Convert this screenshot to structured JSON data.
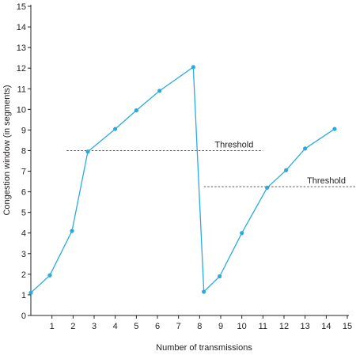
{
  "chart_data": {
    "type": "line",
    "xlabel": "Number of transmissions",
    "ylabel": "Congestion window (in segments)",
    "xlim": [
      0,
      15
    ],
    "ylim": [
      0,
      15
    ],
    "x_ticks": [
      1,
      2,
      3,
      4,
      5,
      6,
      7,
      8,
      9,
      10,
      11,
      12,
      13,
      14,
      15
    ],
    "y_ticks": [
      0,
      1,
      2,
      3,
      4,
      5,
      6,
      7,
      8,
      9,
      10,
      11,
      12,
      13,
      14,
      15
    ],
    "grid": false,
    "legend": "none",
    "series": [
      {
        "color": "#29abe2",
        "points": [
          {
            "x": 0.0,
            "y": 1.1
          },
          {
            "x": 0.9,
            "y": 1.95
          },
          {
            "x": 1.95,
            "y": 4.1
          },
          {
            "x": 2.7,
            "y": 7.95
          },
          {
            "x": 4.0,
            "y": 9.05
          },
          {
            "x": 5.0,
            "y": 9.95
          },
          {
            "x": 6.1,
            "y": 10.9
          },
          {
            "x": 7.7,
            "y": 12.05
          },
          {
            "x": 8.2,
            "y": 1.15
          },
          {
            "x": 8.95,
            "y": 1.9
          },
          {
            "x": 10.0,
            "y": 4.0
          },
          {
            "x": 11.2,
            "y": 6.2
          },
          {
            "x": 12.1,
            "y": 7.05
          },
          {
            "x": 13.0,
            "y": 8.1
          },
          {
            "x": 14.4,
            "y": 9.05
          }
        ]
      }
    ],
    "annotations": [
      {
        "label": "Threshold",
        "y": 8.0,
        "x_start": 1.7,
        "x_end": 11.0,
        "color": "#5a5a5a"
      },
      {
        "label": "Threshold",
        "y": 6.25,
        "x_start": 8.2,
        "x_end": 15.5,
        "color": "#5a5a5a"
      }
    ]
  }
}
